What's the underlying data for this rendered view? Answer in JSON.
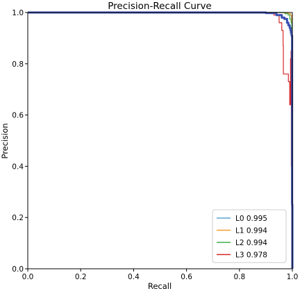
{
  "chart_data": {
    "type": "line",
    "title": "Precision-Recall Curve",
    "xlabel": "Recall",
    "ylabel": "Precision",
    "xlim": [
      0.0,
      1.0
    ],
    "ylim": [
      0.0,
      1.0
    ],
    "xticks": [
      "0.0",
      "0.2",
      "0.4",
      "0.6",
      "0.8",
      "1.0"
    ],
    "yticks": [
      "0.0",
      "0.2",
      "0.4",
      "0.6",
      "0.8",
      "1.0"
    ],
    "grid": false,
    "legend_position": "bottom-right",
    "series": [
      {
        "name": "L0 0.995",
        "color": "#5ba3d6",
        "x": [
          0.0,
          0.9,
          0.95,
          0.975,
          0.985,
          0.992,
          0.996,
          0.998,
          1.0
        ],
        "y": [
          1.0,
          1.0,
          1.0,
          1.0,
          0.995,
          0.99,
          0.97,
          0.5,
          0.0
        ]
      },
      {
        "name": "L1 0.994",
        "color": "#f39c2c",
        "x": [
          0.0,
          0.9,
          0.95,
          0.97,
          0.985,
          0.993,
          0.997,
          0.999,
          1.0
        ],
        "y": [
          1.0,
          1.0,
          1.0,
          0.998,
          0.995,
          0.99,
          0.96,
          0.5,
          0.0
        ]
      },
      {
        "name": "L2 0.994",
        "color": "#3fae49",
        "x": [
          0.0,
          0.9,
          0.95,
          0.972,
          0.984,
          0.99,
          0.995,
          0.998,
          1.0
        ],
        "y": [
          1.0,
          1.0,
          1.0,
          0.995,
          0.99,
          0.975,
          0.96,
          0.5,
          0.0
        ]
      },
      {
        "name": "L3 0.978",
        "color": "#d62728",
        "x": [
          0.0,
          0.9,
          0.93,
          0.95,
          0.96,
          0.965,
          0.966,
          0.975,
          0.985,
          0.99,
          0.993,
          0.995,
          0.996,
          0.998,
          1.0
        ],
        "y": [
          1.0,
          1.0,
          0.99,
          0.96,
          0.93,
          0.87,
          0.76,
          0.76,
          0.73,
          0.64,
          0.82,
          0.85,
          0.4,
          0.2,
          0.0
        ]
      },
      {
        "name": "",
        "color": "#3a4fb0",
        "x": [
          0.0,
          0.85,
          0.9,
          0.94,
          0.96,
          0.97,
          0.98,
          0.985,
          0.99,
          0.993,
          0.995,
          0.997,
          0.999,
          1.0
        ],
        "y": [
          1.0,
          1.0,
          0.998,
          0.99,
          0.98,
          0.975,
          0.96,
          0.95,
          0.94,
          0.93,
          0.92,
          0.91,
          0.25,
          0.0
        ]
      }
    ]
  }
}
